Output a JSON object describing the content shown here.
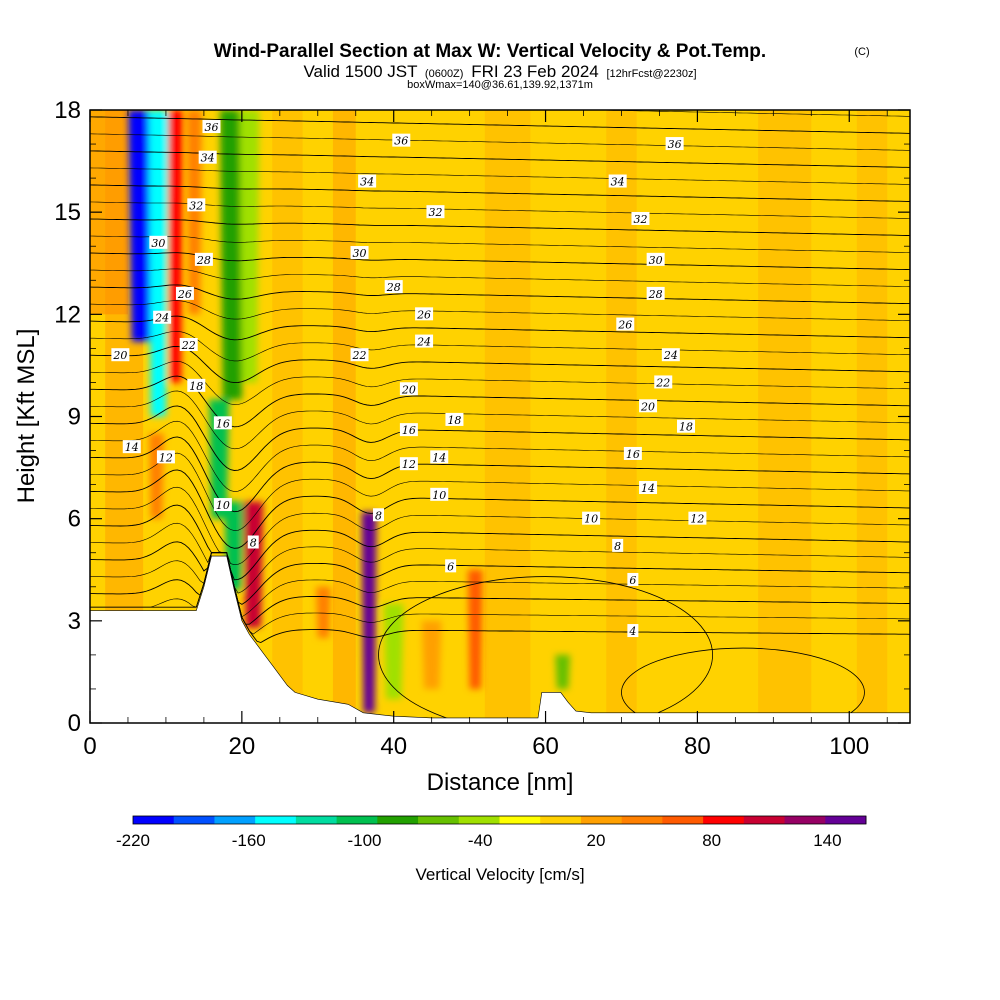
{
  "header": {
    "title": "Wind-Parallel Section at Max W: Vertical Velocity & Pot.Temp.",
    "title_mark": "(C)",
    "valid_prefix": "Valid 1500 JST",
    "valid_utc": "(0600Z)",
    "valid_date": "FRI 23 Feb 2024",
    "forecast_note": "[12hrFcst@2230z]",
    "box_note": "boxWmax=140@36.61,139.92,1371m"
  },
  "chart_data": {
    "type": "heatmap",
    "title": "Wind-Parallel Section at Max W: Vertical Velocity & Pot.Temp.",
    "xlabel": "Distance [nm]",
    "ylabel": "Height [Kft MSL]",
    "xlim": [
      0,
      108
    ],
    "ylim": [
      0,
      18
    ],
    "x_ticks": [
      0,
      20,
      40,
      60,
      80,
      100
    ],
    "y_ticks": [
      0,
      3,
      6,
      9,
      12,
      15,
      18
    ],
    "grid": false,
    "terrain": [
      [
        0,
        3.3
      ],
      [
        14,
        3.3
      ],
      [
        15,
        4
      ],
      [
        16,
        4.9
      ],
      [
        18,
        4.9
      ],
      [
        19,
        3.9
      ],
      [
        20,
        3.0
      ],
      [
        21,
        2.6
      ],
      [
        22,
        2.3
      ],
      [
        23,
        2.0
      ],
      [
        24,
        1.7
      ],
      [
        25,
        1.4
      ],
      [
        26,
        1.1
      ],
      [
        27,
        0.9
      ],
      [
        30,
        0.7
      ],
      [
        34,
        0.55
      ],
      [
        36,
        0.3
      ],
      [
        40,
        0.2
      ],
      [
        45,
        0.15
      ],
      [
        55,
        0.15
      ],
      [
        59,
        0.15
      ],
      [
        59.5,
        0.9
      ],
      [
        62,
        0.9
      ],
      [
        63,
        0.6
      ],
      [
        64,
        0.35
      ],
      [
        66,
        0.3
      ],
      [
        80,
        0.3
      ],
      [
        108,
        0.3
      ]
    ],
    "velocity_features": [
      {
        "x_start": 5.5,
        "x_end": 8.5,
        "y_start": 11.2,
        "y_end": 18,
        "w": -200
      },
      {
        "x_start": 8,
        "x_end": 10,
        "y_start": 9,
        "y_end": 18,
        "w": -150
      },
      {
        "x_start": 10.5,
        "x_end": 12,
        "y_start": 10,
        "y_end": 18,
        "w": 80
      },
      {
        "x_start": 13,
        "x_end": 14.5,
        "y_start": 12,
        "y_end": 18,
        "w": 40
      },
      {
        "x_start": 17.5,
        "x_end": 20,
        "y_start": 9.5,
        "y_end": 18,
        "w": -90
      },
      {
        "x_start": 20,
        "x_end": 22,
        "y_start": 10,
        "y_end": 18,
        "w": -40
      },
      {
        "x_start": 16,
        "x_end": 18,
        "y_start": 6,
        "y_end": 9.5,
        "w": -100
      },
      {
        "x_start": 18,
        "x_end": 20,
        "y_start": 3.7,
        "y_end": 6.5,
        "w": -110
      },
      {
        "x_start": 20.5,
        "x_end": 22.5,
        "y_start": 2.8,
        "y_end": 6.5,
        "w": 100
      },
      {
        "x_start": 36,
        "x_end": 37.5,
        "y_start": 0.3,
        "y_end": 6.2,
        "w": 140
      },
      {
        "x_start": 39,
        "x_end": 41,
        "y_start": 0.7,
        "y_end": 3.5,
        "w": -50
      },
      {
        "x_start": 50,
        "x_end": 51.5,
        "y_start": 1,
        "y_end": 4.5,
        "w": 60
      },
      {
        "x_start": 61.5,
        "x_end": 63,
        "y_start": 1,
        "y_end": 2,
        "w": -60
      },
      {
        "x_start": 8,
        "x_end": 9.5,
        "y_start": 6,
        "y_end": 8.5,
        "w": 40
      },
      {
        "x_start": 30,
        "x_end": 31.5,
        "y_start": 2.5,
        "y_end": 4,
        "w": 40
      },
      {
        "x_start": 44,
        "x_end": 46,
        "y_start": 1,
        "y_end": 3,
        "w": 25
      }
    ],
    "theta_levels": [
      4,
      6,
      8,
      10,
      12,
      14,
      16,
      18,
      20,
      22,
      24,
      26,
      28,
      30,
      32,
      34,
      36
    ],
    "contour_labels": [
      {
        "text": "36",
        "x": 16,
        "y": 17.5
      },
      {
        "text": "36",
        "x": 41,
        "y": 17.1
      },
      {
        "text": "36",
        "x": 77,
        "y": 17.0
      },
      {
        "text": "34",
        "x": 15.5,
        "y": 16.6
      },
      {
        "text": "34",
        "x": 36.5,
        "y": 15.9
      },
      {
        "text": "34",
        "x": 69.5,
        "y": 15.9
      },
      {
        "text": "32",
        "x": 14,
        "y": 15.2
      },
      {
        "text": "32",
        "x": 45.5,
        "y": 15.0
      },
      {
        "text": "32",
        "x": 72.5,
        "y": 14.8
      },
      {
        "text": "30",
        "x": 9,
        "y": 14.1
      },
      {
        "text": "30",
        "x": 35.5,
        "y": 13.8
      },
      {
        "text": "30",
        "x": 74.5,
        "y": 13.6
      },
      {
        "text": "28",
        "x": 15,
        "y": 13.6
      },
      {
        "text": "28",
        "x": 40,
        "y": 12.8
      },
      {
        "text": "28",
        "x": 74.5,
        "y": 12.6
      },
      {
        "text": "26",
        "x": 12.5,
        "y": 12.6
      },
      {
        "text": "26",
        "x": 44,
        "y": 12.0
      },
      {
        "text": "26",
        "x": 70.5,
        "y": 11.7
      },
      {
        "text": "24",
        "x": 9.5,
        "y": 11.9
      },
      {
        "text": "24",
        "x": 44,
        "y": 11.2
      },
      {
        "text": "24",
        "x": 76.5,
        "y": 10.8
      },
      {
        "text": "22",
        "x": 13,
        "y": 11.1
      },
      {
        "text": "22",
        "x": 35.5,
        "y": 10.8
      },
      {
        "text": "22",
        "x": 75.5,
        "y": 10.0
      },
      {
        "text": "20",
        "x": 4,
        "y": 10.8
      },
      {
        "text": "20",
        "x": 42,
        "y": 9.8
      },
      {
        "text": "20",
        "x": 73.5,
        "y": 9.3
      },
      {
        "text": "18",
        "x": 14,
        "y": 9.9
      },
      {
        "text": "18",
        "x": 48,
        "y": 8.9
      },
      {
        "text": "18",
        "x": 78.5,
        "y": 8.7
      },
      {
        "text": "16",
        "x": 17.5,
        "y": 8.8
      },
      {
        "text": "16",
        "x": 42,
        "y": 8.6
      },
      {
        "text": "16",
        "x": 71.5,
        "y": 7.9
      },
      {
        "text": "14",
        "x": 5.5,
        "y": 8.1
      },
      {
        "text": "14",
        "x": 46,
        "y": 7.8
      },
      {
        "text": "14",
        "x": 73.5,
        "y": 6.9
      },
      {
        "text": "12",
        "x": 10,
        "y": 7.8
      },
      {
        "text": "12",
        "x": 42,
        "y": 7.6
      },
      {
        "text": "12",
        "x": 80,
        "y": 6.0
      },
      {
        "text": "10",
        "x": 17.5,
        "y": 6.4
      },
      {
        "text": "10",
        "x": 46,
        "y": 6.7
      },
      {
        "text": "10",
        "x": 66,
        "y": 6.0
      },
      {
        "text": "8",
        "x": 21.5,
        "y": 5.3
      },
      {
        "text": "8",
        "x": 38,
        "y": 6.1
      },
      {
        "text": "8",
        "x": 69.5,
        "y": 5.2
      },
      {
        "text": "6",
        "x": 47.5,
        "y": 4.6
      },
      {
        "text": "6",
        "x": 71.5,
        "y": 4.2
      },
      {
        "text": "4",
        "x": 71.5,
        "y": 2.7
      }
    ],
    "colorbar": {
      "label": "Vertical Velocity [cm/s]",
      "tick_labels": [
        "-220",
        "-160",
        "-100",
        "-40",
        "20",
        "80",
        "140"
      ],
      "tick_values": [
        -220,
        -160,
        -100,
        -40,
        20,
        80,
        140
      ],
      "colors": [
        "#0000ff",
        "#0050ff",
        "#00a0ff",
        "#00ffff",
        "#00dca0",
        "#00c050",
        "#22a000",
        "#66c000",
        "#a0e000",
        "#ffff00",
        "#ffd000",
        "#ffa000",
        "#ff8000",
        "#ff5a00",
        "#ff0000",
        "#c80032",
        "#960064",
        "#640096"
      ]
    }
  }
}
